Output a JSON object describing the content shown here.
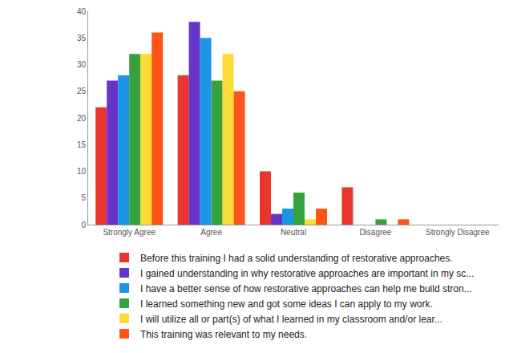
{
  "chart_data": {
    "type": "bar",
    "categories": [
      "Strongly Agree",
      "Agree",
      "Neutral",
      "Disagree",
      "Strongly Disagree"
    ],
    "series": [
      {
        "name": "Before this training I had a solid understanding of restorative approaches.",
        "color": "#e8362e",
        "values": [
          22,
          28,
          10,
          7,
          0
        ]
      },
      {
        "name": "I gained understanding in why restorative approaches are important in my sc...",
        "color": "#6535c9",
        "values": [
          27,
          38,
          2,
          0,
          0
        ]
      },
      {
        "name": "I have a better sense of how restorative approaches can help me build stron...",
        "color": "#1b95e6",
        "values": [
          28,
          35,
          3,
          0,
          0
        ]
      },
      {
        "name": "I learned something new and got some ideas I can apply to my work.",
        "color": "#37a23d",
        "values": [
          32,
          27,
          6,
          1,
          0
        ]
      },
      {
        "name": "I will utilize all or part(s) of what I learned in my classroom and/or lear...",
        "color": "#fddb36",
        "values": [
          32,
          32,
          1,
          0,
          0
        ]
      },
      {
        "name": "This training was relevant to my needs.",
        "color": "#fc5516",
        "values": [
          36,
          25,
          3,
          1,
          0
        ]
      }
    ],
    "ylim": [
      0,
      40
    ],
    "yticks": [
      0,
      5,
      10,
      15,
      20,
      25,
      30,
      35,
      40
    ],
    "grid": false,
    "legend": "bottom"
  }
}
